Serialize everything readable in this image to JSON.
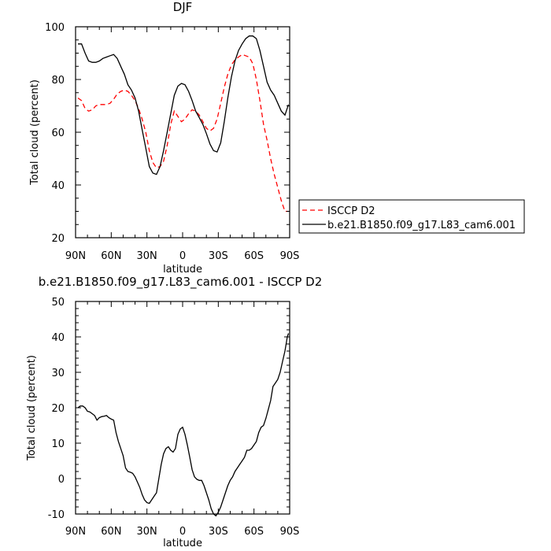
{
  "chart_data": [
    {
      "type": "line",
      "title": "DJF",
      "xlabel": "latitude",
      "ylabel": "Total cloud (percent)",
      "xlim": [
        90,
        -90
      ],
      "ylim": [
        20,
        100
      ],
      "xticks": [
        90,
        60,
        30,
        0,
        -30,
        -60,
        -90
      ],
      "xtick_labels": [
        "90N",
        "60N",
        "30N",
        "0",
        "30S",
        "60S",
        "90S"
      ],
      "yticks": [
        20,
        40,
        60,
        80,
        100
      ],
      "grid": false,
      "legend_position": "right",
      "series": [
        {
          "name": "ISCCP D2",
          "color": "#ff0000",
          "dash": "dashed",
          "x": [
            88,
            85,
            82,
            79,
            76,
            73,
            70,
            67,
            64,
            61,
            58,
            55,
            52,
            49,
            46,
            43,
            40,
            37,
            34,
            31,
            28,
            25,
            22,
            19,
            16,
            13,
            10,
            7,
            4,
            1,
            -2,
            -5,
            -8,
            -11,
            -14,
            -17,
            -20,
            -23,
            -26,
            -29,
            -32,
            -35,
            -38,
            -41,
            -44,
            -47,
            -50,
            -53,
            -56,
            -59,
            -62,
            -65,
            -68,
            -71,
            -74,
            -77,
            -80,
            -83,
            -86,
            -89
          ],
          "y": [
            73,
            72,
            69,
            68,
            68.5,
            70,
            70.5,
            70.5,
            70.5,
            71,
            72.5,
            74.5,
            75.5,
            76,
            75.5,
            74,
            72,
            69,
            65,
            60,
            53,
            48.5,
            46.5,
            47,
            49,
            55,
            63,
            68,
            66,
            64,
            65,
            67,
            68.5,
            68,
            66.5,
            64,
            61.5,
            60.5,
            61.5,
            65,
            71,
            77,
            82,
            85.5,
            87.5,
            88.5,
            89.5,
            89,
            88.5,
            86,
            80,
            72,
            63,
            57,
            50,
            44,
            39,
            34,
            30,
            30
          ]
        },
        {
          "name": "b.e21.B1850.f09_g17.L83_cam6.001",
          "color": "#000000",
          "dash": "solid",
          "x": [
            88,
            85,
            82,
            79,
            76,
            73,
            70,
            67,
            64,
            61,
            58,
            55,
            52,
            49,
            46,
            43,
            40,
            37,
            34,
            31,
            28,
            25,
            22,
            19,
            16,
            13,
            10,
            7,
            4,
            1,
            -2,
            -5,
            -8,
            -11,
            -14,
            -17,
            -20,
            -23,
            -26,
            -29,
            -32,
            -35,
            -38,
            -41,
            -44,
            -47,
            -50,
            -53,
            -56,
            -59,
            -62,
            -65,
            -68,
            -71,
            -74,
            -77,
            -80,
            -83,
            -86,
            -89
          ],
          "y": [
            93.5,
            93.5,
            90,
            87,
            86.5,
            86.5,
            87,
            88,
            88.5,
            89,
            89.5,
            88,
            85,
            82,
            78,
            76,
            73,
            68,
            61,
            54,
            47,
            44.5,
            44,
            47,
            53,
            60,
            67,
            74,
            77.5,
            78.5,
            78,
            75.5,
            72,
            68,
            65.5,
            63,
            59.5,
            55.5,
            53,
            52.5,
            56,
            64,
            73,
            81,
            87,
            91,
            93.5,
            95.5,
            96.5,
            96.5,
            95.5,
            91,
            85,
            79,
            76,
            74,
            71,
            68,
            66.5,
            70.5
          ]
        }
      ]
    },
    {
      "type": "line",
      "title": "b.e21.B1850.f09_g17.L83_cam6.001 - ISCCP D2",
      "xlabel": "latitude",
      "ylabel": "Total cloud (percent)",
      "xlim": [
        90,
        -90
      ],
      "ylim": [
        -10,
        50
      ],
      "xticks": [
        90,
        60,
        30,
        0,
        -30,
        -60,
        -90
      ],
      "xtick_labels": [
        "90N",
        "60N",
        "30N",
        "0",
        "30S",
        "60S",
        "90S"
      ],
      "yticks": [
        -10,
        0,
        10,
        20,
        30,
        40,
        50
      ],
      "grid": false,
      "series": [
        {
          "color": "#000000",
          "dash": "solid",
          "x": [
            88,
            86,
            84,
            82,
            80,
            78,
            76,
            74,
            72,
            70,
            68,
            66,
            64,
            62,
            60,
            58,
            56,
            54,
            52,
            50,
            48,
            46,
            44,
            42,
            40,
            38,
            36,
            34,
            32,
            30,
            28,
            26,
            24,
            22,
            20,
            18,
            16,
            14,
            12,
            10,
            8,
            6,
            4,
            2,
            0,
            -2,
            -4,
            -6,
            -8,
            -10,
            -12,
            -14,
            -16,
            -18,
            -20,
            -22,
            -24,
            -26,
            -28,
            -30,
            -32,
            -34,
            -36,
            -38,
            -40,
            -42,
            -44,
            -46,
            -48,
            -50,
            -52,
            -54,
            -56,
            -58,
            -60,
            -62,
            -64,
            -66,
            -68,
            -70,
            -72,
            -74,
            -76,
            -78,
            -80,
            -82,
            -84,
            -86,
            -88,
            -89
          ],
          "y": [
            20,
            20.5,
            20.5,
            20,
            19,
            18.8,
            18.3,
            17.8,
            16.5,
            17.2,
            17.5,
            17.6,
            17.8,
            17.2,
            16.8,
            16.5,
            13,
            10.5,
            8.5,
            6.5,
            3,
            2,
            1.8,
            1.5,
            0.5,
            -1,
            -2.5,
            -4.5,
            -6,
            -6.8,
            -7,
            -6,
            -5,
            -4,
            0,
            4,
            7,
            8.5,
            9,
            8,
            7.5,
            8.5,
            12.5,
            14,
            14.5,
            12.5,
            9.5,
            6,
            2.5,
            0.5,
            -0.2,
            -0.5,
            -0.5,
            -2,
            -4,
            -6,
            -8.5,
            -10,
            -10.5,
            -9.5,
            -8,
            -6,
            -4,
            -2,
            -0.5,
            0.5,
            2,
            3,
            4,
            5,
            6,
            8,
            8,
            8.5,
            9.5,
            10.5,
            13,
            14.5,
            15,
            17,
            19.5,
            22,
            26,
            27,
            28,
            30,
            33,
            36,
            40,
            41
          ]
        }
      ]
    }
  ]
}
